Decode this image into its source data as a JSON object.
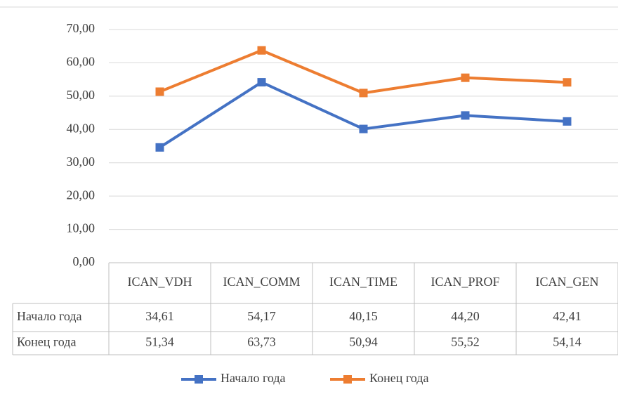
{
  "chart_data": {
    "type": "line",
    "categories": [
      "ICAN_VDH",
      "ICAN_COMM",
      "ICAN_TIME",
      "ICAN_PROF",
      "ICAN_GEN"
    ],
    "series": [
      {
        "name": "Начало года",
        "color": "#4472c4",
        "values": [
          34.61,
          54.17,
          40.15,
          44.2,
          42.41
        ],
        "value_labels": [
          "34,61",
          "54,17",
          "40,15",
          "44,20",
          "42,41"
        ]
      },
      {
        "name": "Конец года",
        "color": "#ed7d31",
        "values": [
          51.34,
          63.73,
          50.94,
          55.52,
          54.14
        ],
        "value_labels": [
          "51,34",
          "63,73",
          "50,94",
          "55,52",
          "54,14"
        ]
      }
    ],
    "ylim": [
      0,
      70
    ],
    "yticks": [
      {
        "value": 0,
        "label": "0,00"
      },
      {
        "value": 10,
        "label": "10,00"
      },
      {
        "value": 20,
        "label": "20,00"
      },
      {
        "value": 30,
        "label": "30,00"
      },
      {
        "value": 40,
        "label": "40,00"
      },
      {
        "value": 50,
        "label": "50,00"
      },
      {
        "value": 60,
        "label": "60,00"
      },
      {
        "value": 70,
        "label": "70,00"
      }
    ],
    "grid": true,
    "legend": "bottom",
    "data_table": true
  }
}
